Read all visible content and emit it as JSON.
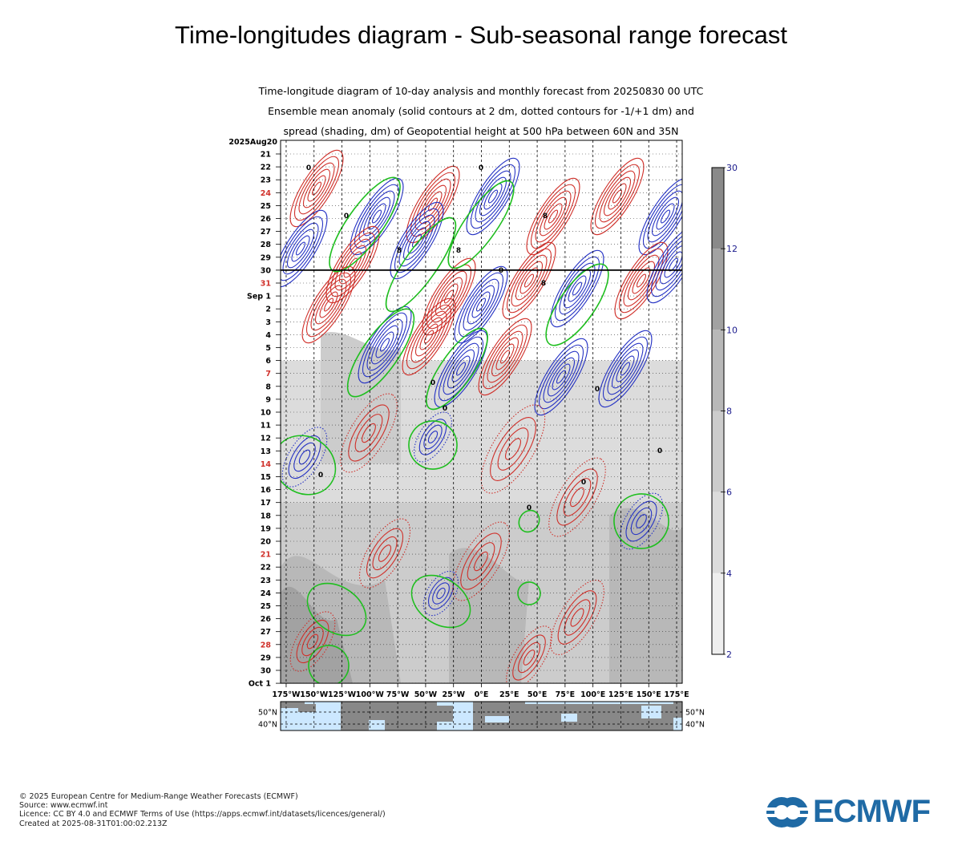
{
  "page": {
    "title": "Time-longitudes diagram - Sub-seasonal range forecast"
  },
  "chart_data": {
    "type": "heatmap",
    "subtitle_lines": [
      "Time-longitude diagram of 10-day analysis and monthly forecast from 20250830 00 UTC",
      "Ensemble mean anomaly (solid contours at 2 dm, dotted contours for -1/+1 dm) and",
      "spread (shading, dm) of Geopotential height at 500 hPa between 60N and 35N"
    ],
    "x_tick_labels": [
      "175°W",
      "150°W",
      "125°W",
      "100°W",
      "75°W",
      "50°W",
      "25°W",
      "0°E",
      "25°E",
      "50°E",
      "75°E",
      "100°E",
      "125°E",
      "150°E",
      "175°E"
    ],
    "x_range": [
      -180,
      180
    ],
    "y_tick_labels": [
      "21",
      "22",
      "23",
      "24",
      "25",
      "26",
      "27",
      "28",
      "29",
      "30",
      "31",
      "Sep  1",
      "2",
      "3",
      "4",
      "5",
      "6",
      "7",
      "8",
      "9",
      "10",
      "11",
      "12",
      "13",
      "14",
      "15",
      "16",
      "17",
      "18",
      "19",
      "20",
      "21",
      "22",
      "23",
      "24",
      "25",
      "26",
      "27",
      "28",
      "29",
      "30",
      "Oct  1"
    ],
    "y_start_label": "2025Aug20",
    "weekend_label_indices": [
      3,
      10,
      17,
      24,
      31,
      38
    ],
    "analysis_forecast_boundary_label": "30",
    "colorbar": {
      "tick_labels": [
        "30",
        "12",
        "10",
        "8",
        "6",
        "4",
        "2"
      ],
      "shade_colors": [
        "#8a8a8a",
        "#a2a2a2",
        "#b8b8b8",
        "#cccccc",
        "#dcdcdc",
        "#eeeeee"
      ]
    },
    "contour_colors": {
      "positive": "#d0302a",
      "negative": "#2633c4",
      "zero": "#1fbf1f",
      "label": "#000000"
    },
    "contour_labels": [
      "0",
      "0",
      "0",
      "0",
      "0",
      "0",
      "0",
      "0",
      "8",
      "8",
      "8",
      "8",
      "0",
      "0",
      "0"
    ],
    "map_strip": {
      "lat_labels": [
        "50°N",
        "40°N"
      ],
      "ocean_color": "#cce8ff",
      "land_color": "#888888"
    }
  },
  "footer": {
    "lines": [
      "© 2025 European Centre for Medium-Range Weather Forecasts (ECMWF)",
      "Source: www.ecmwf.int",
      "Licence: CC BY 4.0 and ECMWF Terms of Use (https://apps.ecmwf.int/datasets/licences/general/)",
      "Created at 2025-08-31T01:00:02.213Z"
    ]
  },
  "logo": {
    "text": "ECMWF",
    "color": "#1f6aa5"
  }
}
